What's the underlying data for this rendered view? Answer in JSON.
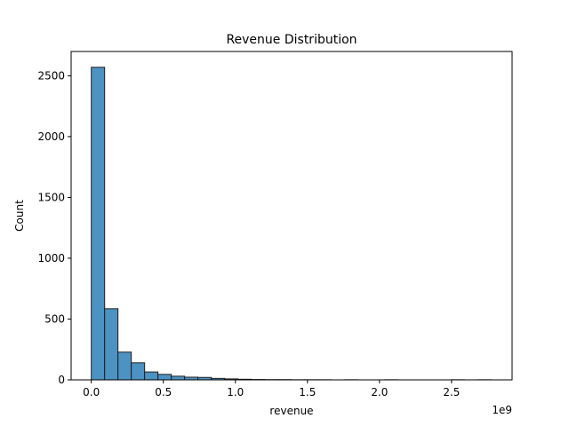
{
  "chart_data": {
    "type": "bar",
    "title": "Revenue Distribution",
    "xlabel": "revenue",
    "ylabel": "Count",
    "x_offset_label": "1e9",
    "xlim": [
      -0.14,
      2.92
    ],
    "ylim": [
      0,
      2700
    ],
    "x_ticks": [
      0.0,
      0.5,
      1.0,
      1.5,
      2.0,
      2.5
    ],
    "x_tick_labels": [
      "0.0",
      "0.5",
      "1.0",
      "1.5",
      "2.0",
      "2.5"
    ],
    "y_ticks": [
      0,
      500,
      1000,
      1500,
      2000,
      2500
    ],
    "y_tick_labels": [
      "0",
      "500",
      "1000",
      "1500",
      "2000",
      "2500"
    ],
    "bin_edges": [
      0.0,
      0.0925,
      0.185,
      0.2775,
      0.37,
      0.4625,
      0.555,
      0.6475,
      0.74,
      0.8325,
      0.925,
      1.0175,
      1.11,
      1.2025,
      1.295,
      1.3875,
      1.48,
      1.5725,
      1.665,
      1.7575,
      1.85,
      1.9425,
      2.035,
      2.1275,
      2.22,
      2.3125,
      2.405,
      2.4975,
      2.59,
      2.6825,
      2.775
    ],
    "counts": [
      2570,
      585,
      228,
      140,
      65,
      45,
      30,
      22,
      20,
      12,
      8,
      5,
      3,
      2,
      2,
      1,
      1,
      1,
      0,
      1,
      0,
      0,
      1,
      0,
      0,
      0,
      0,
      1,
      0,
      1
    ],
    "bar_color": "#4c92c3",
    "edge_color": "#1f1f1f",
    "grid": false
  }
}
